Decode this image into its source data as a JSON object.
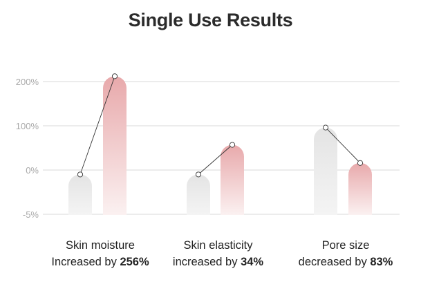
{
  "title": "Single Use Results",
  "chart_data": {
    "type": "bar",
    "title": "Single Use Results",
    "y_ticks": [
      "200%",
      "100%",
      "0%",
      "-5%"
    ],
    "grid": true,
    "categories": [
      {
        "line1": "Skin moisture",
        "line2_prefix": "Increased by",
        "percent": "256%"
      },
      {
        "line1": "Skin elasticity",
        "line2_prefix": "increased by",
        "percent": "34%"
      },
      {
        "line1": "Pore size",
        "line2_prefix": "decreased by",
        "percent": "83%"
      }
    ],
    "series": [
      {
        "color": "#e6e6e6",
        "values": [
          -10,
          -10,
          96
        ]
      },
      {
        "color": "#e8a9ab",
        "values": [
          212,
          57,
          16
        ]
      }
    ],
    "colors": {
      "gray": "#e6e6e6",
      "pink": "#e8a9ab",
      "grid": "#d9d9d9",
      "tick": "#a8a8a8",
      "line": "#333333"
    }
  }
}
